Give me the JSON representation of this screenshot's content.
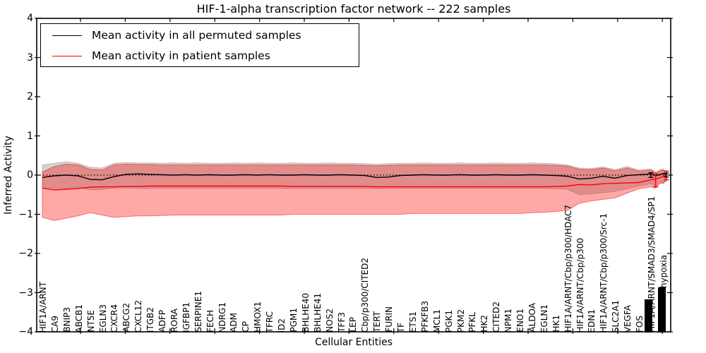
{
  "chart_data": {
    "type": "line",
    "title": "HIF-1-alpha transcription factor network -- 222 samples",
    "xlabel": "Cellular Entities",
    "ylabel": "Inferred Activity",
    "ylim": [
      -4,
      4
    ],
    "y_ticks": [
      4,
      3,
      2,
      1,
      0,
      -1,
      -2,
      -3,
      -4
    ],
    "grid": false,
    "legend_position": "upper left",
    "zero_line": true,
    "categories": [
      "HIF1A/ARNT",
      "CA9",
      "BNIP3",
      "ABCB1",
      "NT5E",
      "EGLN3",
      "CXCR4",
      "ABCG2",
      "CXCL12",
      "ITGB2",
      "ADFP",
      "RORA",
      "IGFBP1",
      "SERPINE1",
      "FECH",
      "NDRG1",
      "ADM",
      "CP",
      "HMOX1",
      "TFRC",
      "ID2",
      "PGM1",
      "BHLHE40",
      "BHLHE41",
      "NOS2",
      "TFF3",
      "LEP",
      "Cbp/p300/CITED2",
      "TERT",
      "FURIN",
      "TF",
      "ETS1",
      "PFKFB3",
      "MCL1",
      "PGK1",
      "PKM2",
      "PFKL",
      "HK2",
      "CITED2",
      "NPM1",
      "ENO1",
      "ALDOA",
      "EGLN1",
      "HK1",
      "HIF1A/ARNT/Cbp/p300/HDAC7",
      "HIF1A/ARNT/Cbp/p300",
      "EDN1",
      "HIF1A/ARNT/Cbp/p300/Src-1",
      "SLC2A1",
      "VEGFA",
      "FOS",
      "HIF1A/ARNT/SMAD3/SMAD4/SP1",
      "hypoxia"
    ],
    "categories_overlapping_illegible": true,
    "label_raise": {
      "52": 63
    },
    "x": [
      0,
      1,
      2,
      3,
      4,
      5,
      6,
      7,
      8,
      9,
      10,
      11,
      12,
      13,
      14,
      15,
      16,
      17,
      18,
      19,
      20,
      21,
      22,
      23,
      24,
      25,
      26,
      27,
      28,
      29,
      30,
      31,
      32,
      33,
      34,
      35,
      36,
      37,
      38,
      39,
      40,
      41,
      42,
      43,
      44,
      45,
      46,
      47,
      48,
      49,
      50,
      51,
      51.4,
      51.8,
      52,
      52.3
    ],
    "series": [
      {
        "name": "Mean activity in all permuted samples",
        "color": "#000000",
        "y": [
          -0.06,
          -0.02,
          0,
          -0.02,
          -0.11,
          -0.12,
          -0.04,
          0.02,
          0.03,
          0.02,
          0.01,
          0,
          0.01,
          0,
          0.01,
          0,
          0,
          0.01,
          0,
          0.01,
          0,
          0,
          0.01,
          0,
          0,
          0.01,
          0,
          -0.01,
          -0.06,
          -0.05,
          -0.01,
          0,
          0.01,
          0,
          0,
          0.01,
          0,
          0,
          0.01,
          0,
          0,
          0.01,
          0,
          -0.01,
          -0.03,
          -0.1,
          -0.08,
          -0.03,
          -0.08,
          -0.01,
          0.01,
          0.03,
          -0.02,
          0.02,
          0.04,
          -0.01
        ],
        "band": {
          "color": "#8c8c8c",
          "upper": [
            0.26,
            0.3,
            0.34,
            0.3,
            0.2,
            0.18,
            0.3,
            0.32,
            0.31,
            0.31,
            0.3,
            0.31,
            0.3,
            0.31,
            0.3,
            0.3,
            0.31,
            0.3,
            0.31,
            0.3,
            0.3,
            0.31,
            0.3,
            0.3,
            0.31,
            0.3,
            0.3,
            0.29,
            0.28,
            0.29,
            0.3,
            0.3,
            0.31,
            0.3,
            0.3,
            0.31,
            0.3,
            0.3,
            0.31,
            0.3,
            0.3,
            0.31,
            0.3,
            0.29,
            0.26,
            0.18,
            0.17,
            0.21,
            0.14,
            0.22,
            0.13,
            0.16,
            0.08,
            0.14,
            0.16,
            0.1
          ],
          "lower": [
            -0.3,
            -0.34,
            -0.33,
            -0.31,
            -0.38,
            -0.37,
            -0.33,
            -0.33,
            -0.34,
            -0.34,
            -0.34,
            -0.34,
            -0.34,
            -0.34,
            -0.34,
            -0.34,
            -0.34,
            -0.34,
            -0.34,
            -0.34,
            -0.34,
            -0.34,
            -0.34,
            -0.34,
            -0.34,
            -0.34,
            -0.34,
            -0.34,
            -0.35,
            -0.34,
            -0.34,
            -0.34,
            -0.34,
            -0.34,
            -0.34,
            -0.34,
            -0.34,
            -0.34,
            -0.34,
            -0.34,
            -0.34,
            -0.34,
            -0.34,
            -0.35,
            -0.36,
            -0.5,
            -0.48,
            -0.45,
            -0.42,
            -0.35,
            -0.28,
            -0.22,
            -0.28,
            -0.18,
            -0.2,
            -0.14
          ]
        }
      },
      {
        "name": "Mean activity in patient samples",
        "color": "#ff0000",
        "y": [
          -0.33,
          -0.38,
          -0.36,
          -0.34,
          -0.31,
          -0.3,
          -0.3,
          -0.29,
          -0.29,
          -0.28,
          -0.28,
          -0.28,
          -0.28,
          -0.28,
          -0.28,
          -0.28,
          -0.28,
          -0.28,
          -0.28,
          -0.28,
          -0.28,
          -0.29,
          -0.29,
          -0.29,
          -0.29,
          -0.29,
          -0.29,
          -0.29,
          -0.3,
          -0.3,
          -0.3,
          -0.3,
          -0.3,
          -0.3,
          -0.3,
          -0.3,
          -0.3,
          -0.3,
          -0.3,
          -0.3,
          -0.3,
          -0.3,
          -0.3,
          -0.29,
          -0.28,
          -0.24,
          -0.25,
          -0.22,
          -0.21,
          -0.2,
          -0.19,
          -0.12,
          -0.1,
          -0.06,
          -0.04,
          -0.02
        ],
        "band": {
          "color": "#ff0000",
          "upper": [
            0.08,
            0.22,
            0.28,
            0.26,
            0.15,
            0.13,
            0.26,
            0.28,
            0.27,
            0.27,
            0.26,
            0.26,
            0.26,
            0.26,
            0.26,
            0.26,
            0.26,
            0.26,
            0.26,
            0.26,
            0.26,
            0.26,
            0.26,
            0.26,
            0.26,
            0.26,
            0.26,
            0.25,
            0.24,
            0.25,
            0.26,
            0.26,
            0.26,
            0.26,
            0.26,
            0.26,
            0.26,
            0.26,
            0.26,
            0.26,
            0.26,
            0.26,
            0.26,
            0.25,
            0.23,
            0.15,
            0.14,
            0.18,
            0.11,
            0.18,
            0.1,
            0.13,
            0.05,
            0.11,
            0.13,
            0.08
          ],
          "lower": [
            -1.08,
            -1.16,
            -1.1,
            -1.04,
            -0.96,
            -1.02,
            -1.08,
            -1.06,
            -1.04,
            -1.04,
            -1.03,
            -1.02,
            -1.02,
            -1.02,
            -1.02,
            -1.02,
            -1.02,
            -1.02,
            -1.02,
            -1.02,
            -1.02,
            -1.0,
            -1.0,
            -1.0,
            -1.0,
            -1.0,
            -1.0,
            -1.0,
            -1.0,
            -1.0,
            -1.0,
            -0.98,
            -0.98,
            -0.98,
            -0.98,
            -0.98,
            -0.98,
            -0.98,
            -0.98,
            -0.98,
            -0.98,
            -0.96,
            -0.95,
            -0.93,
            -0.9,
            -0.72,
            -0.66,
            -0.62,
            -0.58,
            -0.46,
            -0.35,
            -0.3,
            -0.33,
            -0.2,
            -0.22,
            -0.15
          ]
        }
      }
    ],
    "whiskers": [
      {
        "x": 51,
        "top": 0.06,
        "bottom": -0.06,
        "color": "#000000"
      },
      {
        "x": 51.4,
        "top": 0.03,
        "bottom": -0.3,
        "color": "#ff0000"
      },
      {
        "x": 52.3,
        "top": 0.1,
        "bottom": -0.12,
        "color": "#ff0000"
      },
      {
        "x": 52.3,
        "top": 0.05,
        "bottom": -0.05,
        "color": "#000000"
      }
    ]
  }
}
